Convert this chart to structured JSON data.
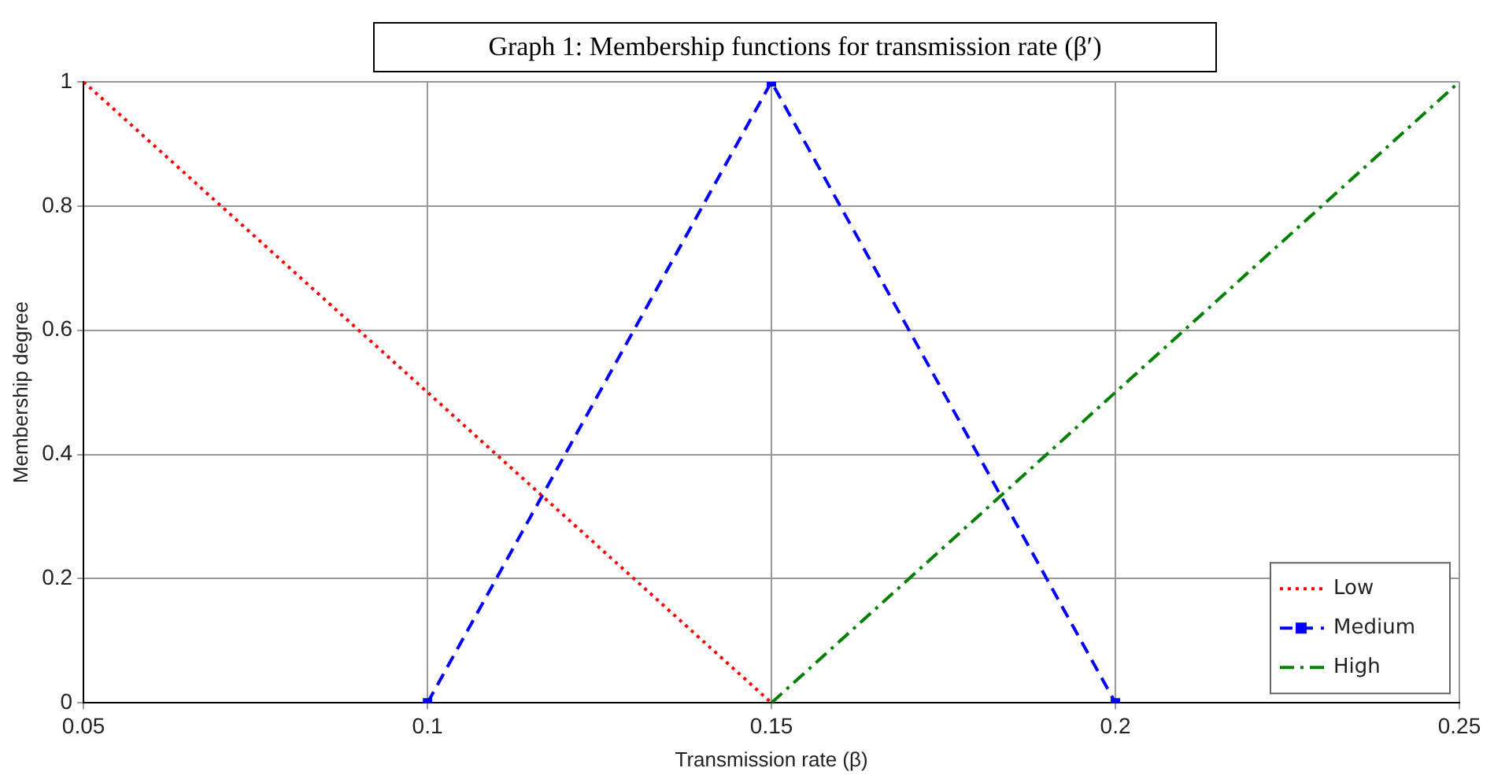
{
  "chart_data": {
    "type": "line",
    "title": "Graph 1: Membership functions for transmission rate (β′)",
    "xlabel": "Transmission rate (β)",
    "ylabel": "Membership degree",
    "xlim": [
      0.05,
      0.25
    ],
    "xticks": [
      0.05,
      0.1,
      0.15,
      0.2,
      0.25
    ],
    "ylim": [
      0,
      1
    ],
    "yticks": [
      0,
      0.2,
      0.4,
      0.6,
      0.8,
      1
    ],
    "grid": true,
    "legend": "bottom right",
    "series": [
      {
        "name": "Low",
        "color": "#ff0000",
        "x": [
          0.05,
          0.15
        ],
        "values": [
          1,
          0
        ],
        "line_style": "dotted",
        "marker": "none"
      },
      {
        "name": "Medium",
        "color": "#0000ff",
        "x": [
          0.1,
          0.15,
          0.2
        ],
        "values": [
          0,
          1,
          0
        ],
        "line_style": "dashed",
        "marker": "square"
      },
      {
        "name": "High",
        "color": "#008000",
        "x": [
          0.15,
          0.25
        ],
        "values": [
          0,
          1
        ],
        "line_style": "dashdot",
        "marker": "none"
      }
    ]
  }
}
